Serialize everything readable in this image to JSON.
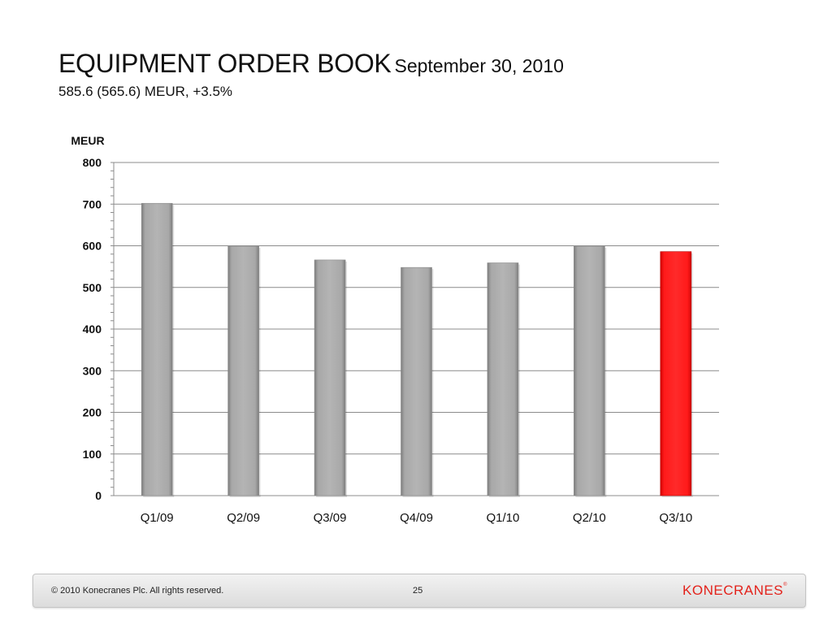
{
  "title": {
    "main": "EQUIPMENT ORDER BOOK",
    "date": "September 30, 2010",
    "subtitle": "585.6 (565.6) MEUR, +3.5%"
  },
  "chart_data": {
    "type": "bar",
    "ylabel": "MEUR",
    "categories": [
      "Q1/09",
      "Q2/09",
      "Q3/09",
      "Q4/09",
      "Q1/10",
      "Q2/10",
      "Q3/10"
    ],
    "values": [
      702,
      599,
      566,
      548,
      559,
      599,
      586
    ],
    "ylim": [
      0,
      800
    ],
    "yticks": [
      "0",
      "100",
      "200",
      "300",
      "400",
      "500",
      "600",
      "700",
      "800"
    ],
    "grid": true,
    "legend": "none",
    "colors": {
      "default_bar": "#a6a6a6",
      "highlight_bar": "#ff0000"
    },
    "highlight_index": 6
  },
  "footer": {
    "copyright": "© 2010 Konecranes Plc. All rights reserved.",
    "page": "25",
    "logo": "KONECRANES",
    "logo_mark": "®"
  }
}
